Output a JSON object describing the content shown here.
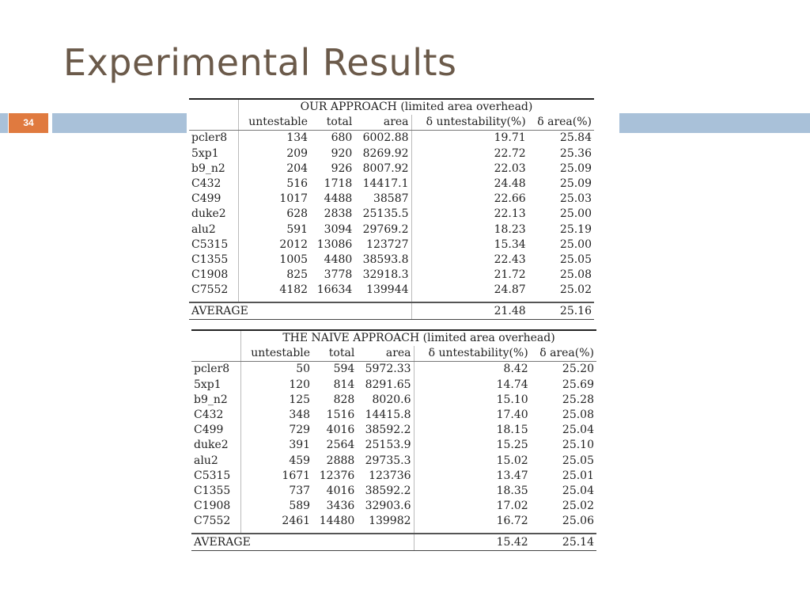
{
  "slide": {
    "title": "Experimental Results",
    "page_number": "34"
  },
  "columns": [
    "untestable",
    "total",
    "area",
    "δ untestability(%)",
    "δ area(%)"
  ],
  "ours": {
    "caption": "OUR APPROACH (limited area overhead)",
    "rows": [
      [
        "pcler8",
        "134",
        "680",
        "6002.88",
        "19.71",
        "25.84"
      ],
      [
        "5xp1",
        "209",
        "920",
        "8269.92",
        "22.72",
        "25.36"
      ],
      [
        "b9_n2",
        "204",
        "926",
        "8007.92",
        "22.03",
        "25.09"
      ],
      [
        "C432",
        "516",
        "1718",
        "14417.1",
        "24.48",
        "25.09"
      ],
      [
        "C499",
        "1017",
        "4488",
        "38587",
        "22.66",
        "25.03"
      ],
      [
        "duke2",
        "628",
        "2838",
        "25135.5",
        "22.13",
        "25.00"
      ],
      [
        "alu2",
        "591",
        "3094",
        "29769.2",
        "18.23",
        "25.19"
      ],
      [
        "C5315",
        "2012",
        "13086",
        "123727",
        "15.34",
        "25.00"
      ],
      [
        "C1355",
        "1005",
        "4480",
        "38593.8",
        "22.43",
        "25.05"
      ],
      [
        "C1908",
        "825",
        "3778",
        "32918.3",
        "21.72",
        "25.08"
      ],
      [
        "C7552",
        "4182",
        "16634",
        "139944",
        "24.87",
        "25.02"
      ]
    ],
    "average": {
      "label": "AVERAGE",
      "d_untest": "21.48",
      "d_area": "25.16"
    }
  },
  "naive": {
    "caption": "THE NAIVE APPROACH (limited area overhead)",
    "rows": [
      [
        "pcler8",
        "50",
        "594",
        "5972.33",
        "8.42",
        "25.20"
      ],
      [
        "5xp1",
        "120",
        "814",
        "8291.65",
        "14.74",
        "25.69"
      ],
      [
        "b9_n2",
        "125",
        "828",
        "8020.6",
        "15.10",
        "25.28"
      ],
      [
        "C432",
        "348",
        "1516",
        "14415.8",
        "17.40",
        "25.08"
      ],
      [
        "C499",
        "729",
        "4016",
        "38592.2",
        "18.15",
        "25.04"
      ],
      [
        "duke2",
        "391",
        "2564",
        "25153.9",
        "15.25",
        "25.10"
      ],
      [
        "alu2",
        "459",
        "2888",
        "29735.3",
        "15.02",
        "25.05"
      ],
      [
        "C5315",
        "1671",
        "12376",
        "123736",
        "13.47",
        "25.01"
      ],
      [
        "C1355",
        "737",
        "4016",
        "38592.2",
        "18.35",
        "25.04"
      ],
      [
        "C1908",
        "589",
        "3436",
        "32903.6",
        "17.02",
        "25.02"
      ],
      [
        "C7552",
        "2461",
        "14480",
        "139982",
        "16.72",
        "25.06"
      ]
    ],
    "average": {
      "label": "AVERAGE",
      "d_untest": "15.42",
      "d_area": "25.14"
    }
  }
}
